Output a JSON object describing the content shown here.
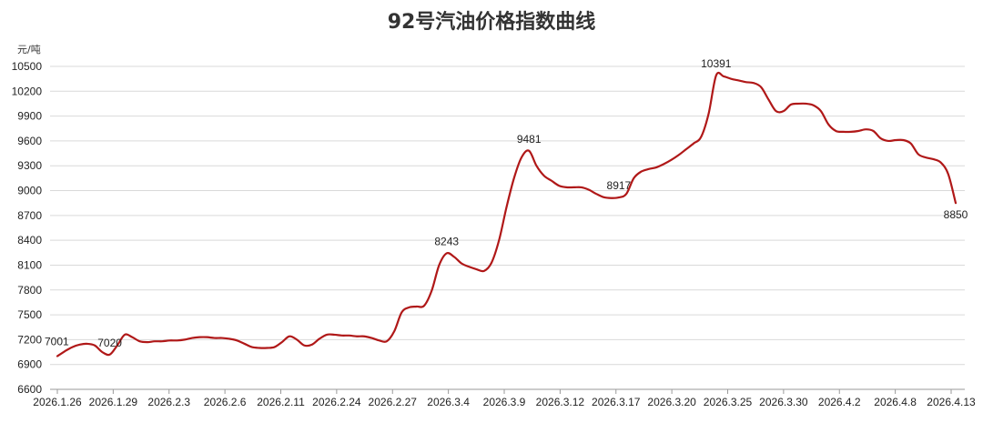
{
  "chart_data": {
    "type": "line",
    "title": "92号汽油价格指数曲线",
    "ylabel": "元/吨",
    "xlabel": "",
    "ylim": [
      6600,
      10500
    ],
    "yticks": [
      6600,
      6900,
      7200,
      7500,
      7800,
      8100,
      8400,
      8700,
      9000,
      9300,
      9600,
      9900,
      10200,
      10500
    ],
    "xtick_labels": [
      "2026.1.26",
      "2026.1.29",
      "2026.2.3",
      "2026.2.6",
      "2026.2.11",
      "2026.2.24",
      "2026.2.27",
      "2026.3.4",
      "2026.3.9",
      "2026.3.12",
      "2026.3.17",
      "2026.3.20",
      "2026.3.25",
      "2026.3.30",
      "2026.4.2",
      "2026.4.8",
      "2026.4.13"
    ],
    "grid": true,
    "color": "#b01818",
    "series": [
      {
        "values": [
          7001,
          7060,
          7110,
          7140,
          7150,
          7130,
          7050,
          7020,
          7130,
          7260,
          7230,
          7180,
          7170,
          7180,
          7180,
          7190,
          7190,
          7200,
          7220,
          7230,
          7230,
          7220,
          7220,
          7210,
          7190,
          7150,
          7110,
          7100,
          7100,
          7110,
          7170,
          7240,
          7200,
          7130,
          7140,
          7210,
          7260,
          7260,
          7250,
          7250,
          7240,
          7240,
          7220,
          7190,
          7180,
          7300,
          7530,
          7590,
          7600,
          7610,
          7790,
          8100,
          8243,
          8200,
          8120,
          8080,
          8050,
          8030,
          8130,
          8400,
          8800,
          9150,
          9400,
          9481,
          9300,
          9180,
          9120,
          9060,
          9040,
          9040,
          9040,
          9010,
          8960,
          8920,
          8910,
          8917,
          8960,
          9150,
          9230,
          9260,
          9280,
          9320,
          9370,
          9430,
          9500,
          9570,
          9650,
          9930,
          10391,
          10380,
          10350,
          10330,
          10310,
          10300,
          10250,
          10100,
          9960,
          9960,
          10040,
          10050,
          10050,
          10030,
          9960,
          9800,
          9720,
          9710,
          9710,
          9720,
          9740,
          9720,
          9630,
          9600,
          9610,
          9610,
          9570,
          9440,
          9400,
          9380,
          9340,
          9200,
          8850
        ]
      }
    ],
    "data_labels": [
      {
        "index": 0,
        "text": "7001"
      },
      {
        "index": 7,
        "text": "7020"
      },
      {
        "index": 52,
        "text": "8243"
      },
      {
        "index": 63,
        "text": "9481"
      },
      {
        "index": 75,
        "text": "8917"
      },
      {
        "index": 88,
        "text": "10391"
      },
      {
        "index": 120,
        "text": "8850"
      }
    ]
  }
}
